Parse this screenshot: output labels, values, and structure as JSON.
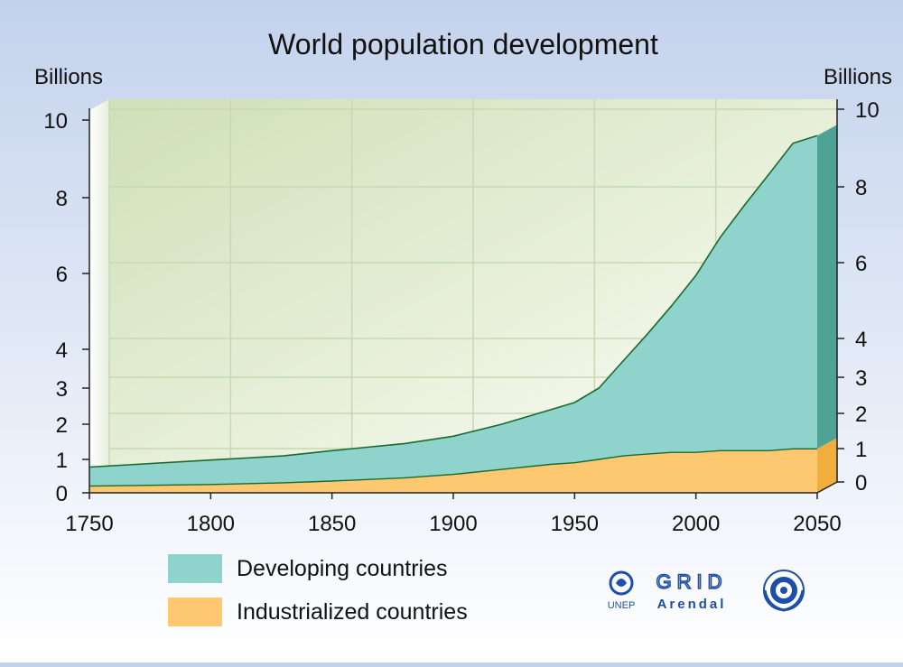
{
  "chart_data": {
    "type": "area",
    "stacked": true,
    "title": "World population development",
    "ylabel_left": "Billions",
    "ylabel_right": "Billions",
    "xlim": [
      1750,
      2050
    ],
    "ylim": [
      0,
      10
    ],
    "x_ticks": [
      "1750",
      "1800",
      "1850",
      "1900",
      "1950",
      "2000",
      "2050"
    ],
    "y_ticks_left": [
      "0",
      "1",
      "2",
      "3",
      "4",
      "6",
      "8",
      "10"
    ],
    "y_ticks_right": [
      "0",
      "1",
      "2",
      "3",
      "4",
      "6",
      "8",
      "10"
    ],
    "grid": true,
    "legend_position": "bottom-left",
    "x": [
      1750,
      1800,
      1830,
      1850,
      1880,
      1900,
      1920,
      1940,
      1950,
      1960,
      1970,
      1980,
      1990,
      2000,
      2010,
      2020,
      2030,
      2040,
      2050
    ],
    "series": [
      {
        "name": "Industrialized countries",
        "color": "#fdc86f",
        "values": [
          0.2,
          0.25,
          0.3,
          0.35,
          0.45,
          0.55,
          0.7,
          0.85,
          0.9,
          1.0,
          1.1,
          1.15,
          1.2,
          1.2,
          1.25,
          1.25,
          1.25,
          1.3,
          1.3
        ]
      },
      {
        "name": "Developing countries",
        "color": "#8ed3cc",
        "values": [
          0.57,
          0.73,
          0.8,
          0.9,
          1.0,
          1.11,
          1.3,
          1.55,
          1.7,
          2.0,
          2.6,
          3.25,
          3.95,
          4.75,
          5.7,
          6.55,
          7.35,
          8.1,
          8.3
        ]
      }
    ]
  },
  "legend": {
    "developing_label": "Developing countries",
    "industrialized_label": "Industrialized countries",
    "developing_color": "#8ed3cc",
    "industrialized_color": "#fdc86f"
  },
  "logos": {
    "unep": "UNEP",
    "grid": "GRID",
    "arendal": "Arendal"
  }
}
